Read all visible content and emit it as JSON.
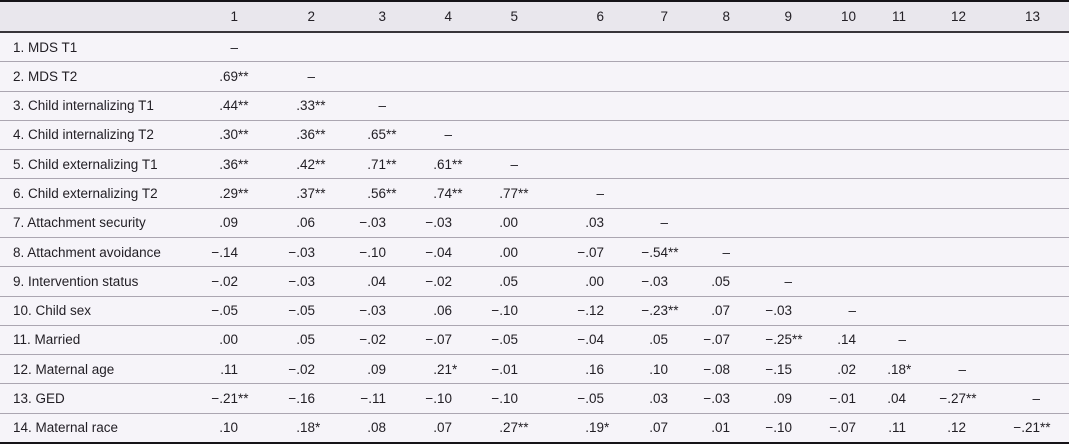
{
  "table": {
    "columns": [
      "1",
      "2",
      "3",
      "4",
      "5",
      "6",
      "7",
      "8",
      "9",
      "10",
      "11",
      "12",
      "13"
    ],
    "diagonal_marker": "–",
    "rows": [
      {
        "label": "1. MDS T1",
        "values": [
          "–"
        ]
      },
      {
        "label": "2. MDS T2",
        "values": [
          ".69**",
          "–"
        ]
      },
      {
        "label": "3. Child internalizing T1",
        "values": [
          ".44**",
          ".33**",
          "–"
        ]
      },
      {
        "label": "4. Child internalizing T2",
        "values": [
          ".30**",
          ".36**",
          ".65**",
          "–"
        ]
      },
      {
        "label": "5. Child externalizing T1",
        "values": [
          ".36**",
          ".42**",
          ".71**",
          ".61**",
          "–"
        ]
      },
      {
        "label": "6. Child externalizing T2",
        "values": [
          ".29**",
          ".37**",
          ".56**",
          ".74**",
          ".77**",
          "–"
        ]
      },
      {
        "label": "7. Attachment security",
        "values": [
          ".09",
          ".06",
          "−.03",
          "−.03",
          ".00",
          ".03",
          "–"
        ]
      },
      {
        "label": "8. Attachment avoidance",
        "values": [
          "−.14",
          "−.03",
          "−.10",
          "−.04",
          ".00",
          "−.07",
          "−.54**",
          "–"
        ]
      },
      {
        "label": "9. Intervention status",
        "values": [
          "−.02",
          "−.03",
          ".04",
          "−.02",
          ".05",
          ".00",
          "−.03",
          ".05",
          "–"
        ]
      },
      {
        "label": "10. Child sex",
        "values": [
          "−.05",
          "−.05",
          "−.03",
          ".06",
          "−.10",
          "−.12",
          "−.23**",
          ".07",
          "−.03",
          "–"
        ]
      },
      {
        "label": "11. Married",
        "values": [
          ".00",
          ".05",
          "−.02",
          "−.07",
          "−.05",
          "−.04",
          ".05",
          "−.07",
          "−.25**",
          ".14",
          "–"
        ]
      },
      {
        "label": "12. Maternal age",
        "values": [
          ".11",
          "−.02",
          ".09",
          ".21*",
          "−.01",
          ".16",
          ".10",
          "−.08",
          "−.15",
          ".02",
          ".18*",
          "–"
        ]
      },
      {
        "label": "13. GED",
        "values": [
          "−.21**",
          "−.16",
          "−.11",
          "−.10",
          "−.10",
          "−.05",
          ".03",
          "−.03",
          ".09",
          "−.01",
          ".04",
          "−.27**",
          "–"
        ]
      },
      {
        "label": "14. Maternal race",
        "values": [
          ".10",
          ".18*",
          ".08",
          ".07",
          ".27**",
          ".19*",
          ".07",
          ".01",
          "−.10",
          "−.07",
          ".11",
          ".12",
          "−.21**"
        ]
      }
    ],
    "colors": {
      "header_background": "#e9e7ed",
      "body_background": "#f6f4f9",
      "rule_dark": "#161418",
      "rule_light": "#aba6b1",
      "text": "#211e24"
    }
  }
}
